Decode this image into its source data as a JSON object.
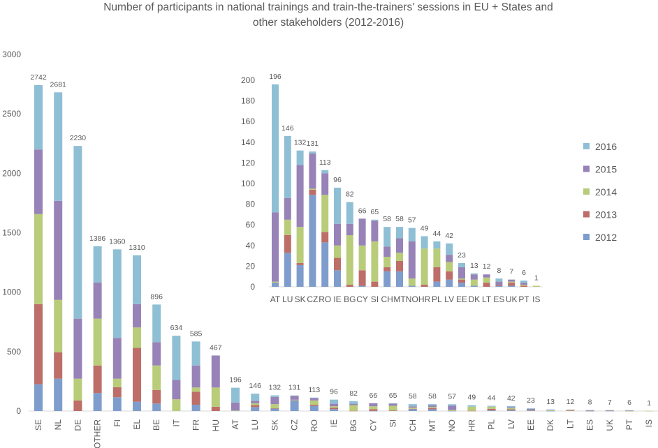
{
  "chart_data": {
    "type": "bar",
    "stacked": true,
    "title": "Number of participants in national trainings and train-the-trainers' sessions in EU + States and other stakeholders (2012-2016)",
    "title_lines": [
      "Number of participants in national trainings and train-the-trainers' sessions in EU + States and",
      "other stakeholders (2012-2016)"
    ],
    "legend_position": "right (inside inset)",
    "colors": {
      "2012": "#7f9dcc",
      "2013": "#bd6e68",
      "2014": "#b9cc7a",
      "2015": "#9783b7",
      "2016": "#8fbfd4"
    },
    "series_names": [
      "2012",
      "2013",
      "2014",
      "2015",
      "2016"
    ],
    "legend_order": [
      "2016",
      "2015",
      "2014",
      "2013",
      "2012"
    ],
    "main": {
      "ylim": [
        0,
        3000
      ],
      "yticks": [
        0,
        500,
        1000,
        1500,
        2000,
        2500,
        3000
      ],
      "categories": [
        "SE",
        "NL",
        "DE",
        "OTHER",
        "FI",
        "EL",
        "BE",
        "IT",
        "FR",
        "HU",
        "AT",
        "LU",
        "SK",
        "CZ",
        "RO",
        "IE",
        "BG",
        "CY",
        "SI",
        "CH",
        "MT",
        "NO",
        "HR",
        "PL",
        "LV",
        "EE",
        "DK",
        "LT",
        "ES",
        "UK",
        "PT",
        "IS"
      ],
      "totals": [
        2742,
        2681,
        2230,
        1386,
        1360,
        1310,
        896,
        634,
        585,
        467,
        196,
        146,
        132,
        131,
        113,
        96,
        82,
        66,
        65,
        58,
        58,
        57,
        49,
        44,
        42,
        23,
        13,
        12,
        8,
        7,
        6,
        1
      ]
    },
    "inset": {
      "ylim": [
        0,
        200
      ],
      "yticks": [
        0,
        20,
        40,
        60,
        80,
        100,
        120,
        140,
        160,
        180,
        200
      ],
      "categories": [
        "AT",
        "LU",
        "SK",
        "CZ",
        "RO",
        "IE",
        "BG",
        "CY",
        "SI",
        "CH",
        "MT",
        "NO",
        "HR",
        "PL",
        "LV",
        "EE",
        "DK",
        "LT",
        "ES",
        "UK",
        "PT",
        "IS"
      ],
      "totals": [
        196,
        146,
        132,
        131,
        113,
        96,
        82,
        66,
        65,
        58,
        58,
        57,
        49,
        44,
        42,
        23,
        13,
        12,
        8,
        7,
        6,
        1
      ]
    },
    "values": {
      "SE": [
        225,
        674,
        758,
        543,
        542
      ],
      "NL": [
        272,
        221,
        442,
        833,
        913
      ],
      "DE": [
        0,
        88,
        184,
        505,
        1453
      ],
      "OTHER": [
        152,
        231,
        394,
        305,
        304
      ],
      "FI": [
        116,
        84,
        72,
        343,
        745
      ],
      "EL": [
        78,
        453,
        172,
        196,
        411
      ],
      "BE": [
        63,
        114,
        206,
        196,
        317
      ],
      "IT": [
        0,
        0,
        99,
        162,
        373
      ],
      "FR": [
        53,
        109,
        36,
        185,
        202
      ],
      "HU": [
        0,
        36,
        162,
        269,
        0
      ],
      "AT": [
        4,
        0,
        1,
        67,
        124
      ],
      "LU": [
        33,
        17,
        15,
        21,
        60
      ],
      "SK": [
        21,
        2,
        35,
        60,
        14
      ],
      "CZ": [
        89,
        5,
        1,
        34,
        2
      ],
      "RO": [
        43,
        10,
        36,
        21,
        3
      ],
      "IE": [
        16,
        12,
        12,
        21,
        35
      ],
      "BG": [
        0,
        2,
        48,
        11,
        21
      ],
      "CY": [
        1,
        15,
        24,
        26,
        0
      ],
      "SI": [
        0,
        5,
        39,
        20,
        1
      ],
      "CH": [
        15,
        4,
        10,
        10,
        19
      ],
      "MT": [
        15,
        10,
        8,
        14,
        11
      ],
      "NO": [
        1,
        0,
        7,
        36,
        13
      ],
      "HR": [
        0,
        2,
        35,
        0,
        12
      ],
      "PL": [
        5,
        14,
        18,
        0,
        7
      ],
      "LV": [
        7,
        8,
        9,
        7,
        11
      ],
      "EE": [
        4,
        3,
        1,
        11,
        4
      ],
      "DK": [
        1,
        0,
        6,
        5,
        1
      ],
      "LT": [
        0,
        4,
        5,
        3,
        0
      ],
      "ES": [
        1,
        1,
        0,
        3,
        3
      ],
      "UK": [
        1,
        3,
        1,
        2,
        0
      ],
      "PT": [
        0,
        1,
        1,
        2,
        2
      ],
      "IS": [
        0,
        0,
        1,
        0,
        0
      ]
    }
  }
}
